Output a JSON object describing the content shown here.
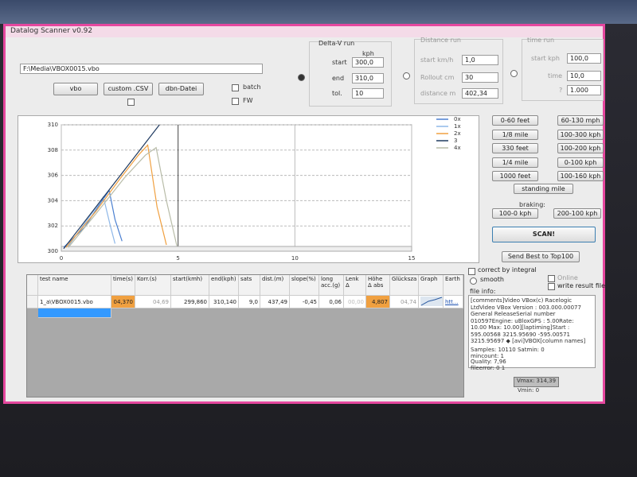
{
  "window": {
    "title": "Datalog Scanner v0.92"
  },
  "file": {
    "path": "F:\\Media\\VBOX0015.vbo",
    "buttons": [
      "vbo",
      "custom .CSV",
      "dbn-Datei"
    ],
    "batch": "batch",
    "fw": "FW"
  },
  "delta_v": {
    "title": "Delta-V run",
    "unit": "kph",
    "fields": [
      {
        "label": "start",
        "value": "300,0"
      },
      {
        "label": "end",
        "value": "310,0"
      },
      {
        "label": "tol.",
        "value": "10"
      }
    ]
  },
  "distance_run": {
    "title": "Distance run",
    "fields": [
      {
        "label": "start km/h",
        "value": "1,0"
      },
      {
        "label": "Rollout cm",
        "value": "30"
      },
      {
        "label": "distance m",
        "value": "402,34"
      }
    ]
  },
  "time_run": {
    "title": "time run",
    "fields": [
      {
        "label": "start kph",
        "value": "100,0"
      },
      {
        "label": "time",
        "value": "10,0"
      },
      {
        "label": "?",
        "value": "1.000"
      }
    ]
  },
  "presets": [
    [
      "0-60 feet",
      "60-130 mph"
    ],
    [
      "1/8 mile",
      "100-300 kph"
    ],
    [
      "330 feet",
      "100-200 kph"
    ],
    [
      "1/4 mile",
      "0-100 kph"
    ],
    [
      "1000 feet",
      "100-160 kph"
    ]
  ],
  "standing": "standing mile",
  "braking": {
    "label": "braking:",
    "buttons": [
      "100-0 kph",
      "200-100 kph"
    ]
  },
  "scan": "SCAN!",
  "send": "Send Best to Top100",
  "options": {
    "correct": "correct by integral",
    "smooth": "smooth",
    "online": "Online",
    "write": "write result file"
  },
  "file_info": {
    "label": "file info:",
    "text": [
      "[comments]Video VBox(c) Racelogic",
      "LtdVideo VBox Version : 003.000.00077",
      "General ReleaseSerial number",
      "010597Engine: uBloxGPS : 5.00Rate:",
      "10.00 Max: 10.00][laptiming]Start :",
      "595.00568 3215.95690 -595.00571",
      "3215.95697 ◆ [avi]VBOX[column names]"
    ],
    "stats": [
      "Samples: 10110  Satmin: 0",
      "mincount: 1",
      "Quality: 7,96",
      "fileerror: 0 1"
    ],
    "vmax": "Vmax: 314,39",
    "vmin": "Vmin: 0"
  },
  "table": {
    "columns": [
      "test name",
      "time(s)",
      "Korr.(s)",
      "start(kmh)",
      "end(kph)",
      "sats",
      "dist.(m)",
      "slope(%)",
      "long acc.(g)",
      "Lenk Δ",
      "Höhe Δ abs",
      "Glücksza",
      "Graph",
      "Earth"
    ],
    "rows": [
      [
        "1_a\\VBOX0015.vbo",
        "04,370",
        "04,69",
        "299,860",
        "310,140",
        "9,0",
        "437,49",
        "-0,45",
        "0,06",
        "00,00",
        "4,807",
        "04,74",
        "",
        "htt..."
      ]
    ]
  },
  "chart_data": {
    "type": "line",
    "xlim": [
      0,
      15
    ],
    "xticks": [
      0,
      5,
      10,
      15
    ],
    "ylim": [
      300,
      310
    ],
    "yticks": [
      300,
      302,
      304,
      306,
      308,
      310
    ],
    "grid": true,
    "series": [
      {
        "name": "0x",
        "color": "#4a7fd0",
        "x": [
          0.1,
          1,
          1.6,
          2.05,
          2.3,
          2.6
        ],
        "values": [
          300.3,
          301.9,
          303.6,
          304.8,
          302.5,
          300.8
        ]
      },
      {
        "name": "1x",
        "color": "#8fb8e8",
        "x": [
          0.3,
          1,
          1.5,
          1.8,
          2.1,
          2.3
        ],
        "values": [
          300.4,
          302.2,
          303.5,
          304.3,
          302,
          300.6
        ]
      },
      {
        "name": "2x",
        "color": "#f0a040",
        "x": [
          0.2,
          1.5,
          2.5,
          3.3,
          3.7,
          4.1,
          4.5
        ],
        "values": [
          300.3,
          303.2,
          305.7,
          307.6,
          308.4,
          303.5,
          300.5
        ]
      },
      {
        "name": "3",
        "color": "#1f3a60",
        "x": [
          0.1,
          4.2
        ],
        "values": [
          300.2,
          310
        ]
      },
      {
        "name": "4x",
        "color": "#b8bca8",
        "x": [
          0.3,
          1.5,
          2.7,
          3.6,
          4.06,
          4.5,
          4.95
        ],
        "values": [
          300.3,
          303,
          305.8,
          307.6,
          308.2,
          304,
          300.4
        ]
      }
    ]
  }
}
